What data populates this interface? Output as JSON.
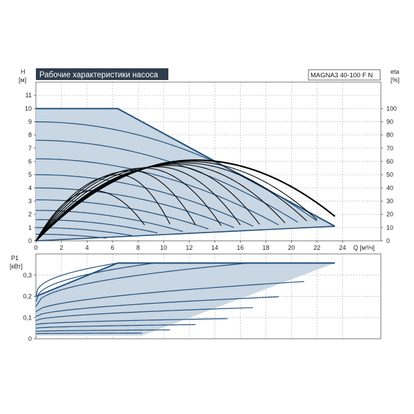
{
  "header": {
    "title": "Рабочие характеристики насоса",
    "model": "MAGNA3 40-100 F N"
  },
  "colors": {
    "envelope_fill": "#c9d6e3",
    "envelope_stroke": "#1f4e79",
    "curve": "#1f4e79",
    "eta_curve": "#000000",
    "title_bg": "#2f3d4d",
    "title_text": "#ffffff"
  },
  "chart_data": [
    {
      "type": "line",
      "id": "head",
      "y_label": "H",
      "y_unit": "[м]",
      "y2_label": "eta",
      "y2_unit": "[%]",
      "x_label": "Q [м³/ч]",
      "xlim": [
        0,
        27
      ],
      "ylim": [
        0,
        12
      ],
      "y2lim": [
        0,
        120
      ],
      "x_ticks": [
        0,
        2,
        4,
        6,
        8,
        10,
        12,
        14,
        16,
        18,
        20,
        22,
        24
      ],
      "y_ticks": [
        0,
        1,
        2,
        3,
        4,
        5,
        6,
        7,
        8,
        9,
        10,
        11
      ],
      "y2_ticks": [
        0,
        10,
        20,
        30,
        40,
        50,
        60,
        70,
        80,
        90,
        100
      ],
      "grid": true,
      "envelope": [
        [
          0,
          10
        ],
        [
          6.4,
          10
        ],
        [
          23.4,
          1.1
        ],
        [
          0,
          0
        ]
      ],
      "speed_curves": [
        {
          "h0": 9.0,
          "q1": 22.0,
          "h1": 1.5
        },
        {
          "h0": 7.6,
          "q1": 20.5,
          "h1": 1.4
        },
        {
          "h0": 6.2,
          "q1": 19.0,
          "h1": 1.2
        },
        {
          "h0": 5.0,
          "q1": 17.0,
          "h1": 1.1
        },
        {
          "h0": 4.0,
          "q1": 15.5,
          "h1": 1.0
        },
        {
          "h0": 3.1,
          "q1": 13.5,
          "h1": 0.9
        },
        {
          "h0": 2.3,
          "q1": 11.5,
          "h1": 0.7
        },
        {
          "h0": 1.6,
          "q1": 9.5,
          "h1": 0.6
        },
        {
          "h0": 1.0,
          "q1": 7.5,
          "h1": 0.4
        },
        {
          "h0": 0.5,
          "q1": 5.5,
          "h1": 0.2
        }
      ],
      "eta_curves": [
        {
          "qmax": 23.4,
          "qpeak": 12.5,
          "peak": 61,
          "end": 18.5,
          "bold": true
        },
        {
          "qmax": 22.0,
          "qpeak": 12.0,
          "peak": 60,
          "end": 16.0
        },
        {
          "qmax": 21.2,
          "qpeak": 11.5,
          "peak": 59,
          "end": 15.0
        },
        {
          "qmax": 19.5,
          "qpeak": 11.0,
          "peak": 58,
          "end": 13.5
        },
        {
          "qmax": 17.5,
          "qpeak": 10.5,
          "peak": 57,
          "end": 12.5
        },
        {
          "qmax": 16.0,
          "qpeak": 9.5,
          "peak": 56,
          "end": 12.0
        },
        {
          "qmax": 14.5,
          "qpeak": 8.5,
          "peak": 55,
          "end": 11.5
        },
        {
          "qmax": 12.5,
          "qpeak": 7.5,
          "peak": 53,
          "end": 12.0
        },
        {
          "qmax": 10.5,
          "qpeak": 6.5,
          "peak": 50,
          "end": 12.5
        },
        {
          "qmax": 8.5,
          "qpeak": 4.5,
          "peak": 38,
          "end": 12.0
        }
      ]
    },
    {
      "type": "line",
      "id": "power",
      "y_label": "P1",
      "y_unit": "[кВт]",
      "xlim": [
        0,
        27
      ],
      "ylim": [
        0,
        0.4
      ],
      "x_ticks": [
        0,
        2,
        4,
        6,
        8,
        10,
        12,
        14,
        16,
        18,
        20,
        22,
        24
      ],
      "y_ticks": [
        0,
        0.1,
        0.2,
        0.3
      ],
      "y_tick_labels": [
        "0",
        "0,1",
        "0,2",
        "0,3"
      ],
      "grid": true,
      "envelope": [
        [
          0,
          0.2
        ],
        [
          6.4,
          0.357
        ],
        [
          23.4,
          0.357
        ],
        [
          8.3,
          0.015
        ],
        [
          0,
          0.015
        ]
      ],
      "power_curves": [
        {
          "p0": 0.2,
          "pend": 0.357,
          "qend": 6.4,
          "b": 0.4
        },
        {
          "p0": 0.175,
          "pend": 0.357,
          "qend": 9.3,
          "b": 0.42
        },
        {
          "p0": 0.152,
          "pend": 0.357,
          "qend": 16.7,
          "b": 0.45
        },
        {
          "p0": 0.128,
          "pend": 0.27,
          "qend": 21.0,
          "b": 0.55
        },
        {
          "p0": 0.105,
          "pend": 0.198,
          "qend": 19.0,
          "b": 0.55
        },
        {
          "p0": 0.086,
          "pend": 0.147,
          "qend": 17.0,
          "b": 0.55
        },
        {
          "p0": 0.067,
          "pend": 0.095,
          "qend": 15.0,
          "b": 0.55
        },
        {
          "p0": 0.05,
          "pend": 0.067,
          "qend": 12.5,
          "b": 0.55
        },
        {
          "p0": 0.035,
          "pend": 0.042,
          "qend": 10.5,
          "b": 0.55
        },
        {
          "p0": 0.024,
          "pend": 0.027,
          "qend": 8.3,
          "b": 0.55
        }
      ]
    }
  ]
}
